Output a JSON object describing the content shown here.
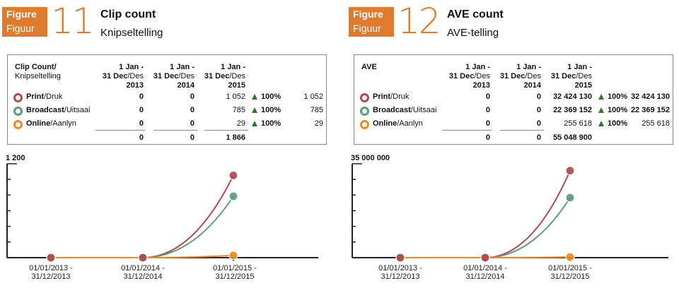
{
  "figures": [
    {
      "badge_line1": "Figure",
      "badge_line2": "Figuur",
      "number": "11",
      "title": "Clip count",
      "subtitle": "Knipseltelling",
      "table": {
        "header_main_bold": "Clip Count/",
        "header_main_sub": "Knipseltelling",
        "columns": [
          {
            "line1": "1 Jan -",
            "line2_bold": "31 Dec",
            "line2_rest": "/Des",
            "line3": "2013"
          },
          {
            "line1": "1 Jan -",
            "line2_bold": "31 Dec",
            "line2_rest": "/Des",
            "line3": "2014"
          },
          {
            "line1": "1 Jan -",
            "line2_bold": "31 Dec",
            "line2_rest": "/Des",
            "line3": "2015"
          }
        ],
        "rows": [
          {
            "label_bold": "Print",
            "label_rest": "/Druk",
            "color": "#b04a4f",
            "values": [
              "0",
              "0",
              "1 052"
            ],
            "pct": "100%",
            "total": "1 052"
          },
          {
            "label_bold": "Broadcast",
            "label_rest": "/Uitsaai",
            "color": "#5c9c79",
            "values": [
              "0",
              "0",
              "785"
            ],
            "pct": "100%",
            "total": "785"
          },
          {
            "label_bold": "Online",
            "label_rest": "/Aanlyn",
            "color": "#ee8a1e",
            "values": [
              "0",
              "0",
              "29"
            ],
            "pct": "100%",
            "total": "29"
          }
        ],
        "totals": [
          "0",
          "0",
          "1 866"
        ]
      },
      "chart_data": {
        "type": "line",
        "categories": [
          "01/01/2013 - 31/12/2013",
          "01/01/2014 - 31/12/2014",
          "01/01/2015 - 31/12/2015"
        ],
        "y_max_label": "1 200",
        "ylim": [
          0,
          1200
        ],
        "series": [
          {
            "name": "Print",
            "color": "#b04a4f",
            "values": [
              0,
              0,
              1052
            ]
          },
          {
            "name": "Broadcast",
            "color": "#5c9c79",
            "values": [
              0,
              0,
              785
            ]
          },
          {
            "name": "Online",
            "color": "#ee8a1e",
            "values": [
              0,
              0,
              29
            ]
          }
        ]
      }
    },
    {
      "badge_line1": "Figure",
      "badge_line2": "Figuur",
      "number": "12",
      "title": "AVE count",
      "subtitle": "AVE-telling",
      "table": {
        "header_main_bold": "AVE",
        "header_main_sub": "",
        "columns": [
          {
            "line1": "1 Jan -",
            "line2_bold": "31 Dec",
            "line2_rest": "/Des",
            "line3": "2013"
          },
          {
            "line1": "1 Jan -",
            "line2_bold": "31 Dec",
            "line2_rest": "/Des",
            "line3": "2014"
          },
          {
            "line1": "1 Jan -",
            "line2_bold": "31 Dec",
            "line2_rest": "/Des",
            "line3": "2015"
          }
        ],
        "rows": [
          {
            "label_bold": "Print",
            "label_rest": "/Druk",
            "color": "#b04a4f",
            "values": [
              "0",
              "0",
              "32 424 130"
            ],
            "pct": "100%",
            "total": "32 424 130"
          },
          {
            "label_bold": "Broadcast",
            "label_rest": "/Uitsaai",
            "color": "#5c9c79",
            "values": [
              "0",
              "0",
              "22 369 152"
            ],
            "pct": "100%",
            "total": "22 369 152"
          },
          {
            "label_bold": "Online",
            "label_rest": "/Aanlyn",
            "color": "#ee8a1e",
            "values": [
              "0",
              "0",
              "255 618"
            ],
            "pct": "100%",
            "total": "255 618"
          }
        ],
        "totals": [
          "0",
          "0",
          "55 048 900"
        ]
      },
      "chart_data": {
        "type": "line",
        "categories": [
          "01/01/2013 - 31/12/2013",
          "01/01/2014 - 31/12/2014",
          "01/01/2015 - 31/12/2015"
        ],
        "y_max_label": "35 000 000",
        "ylim": [
          0,
          35000000
        ],
        "series": [
          {
            "name": "Print",
            "color": "#b04a4f",
            "values": [
              0,
              0,
              32424130
            ]
          },
          {
            "name": "Broadcast",
            "color": "#5c9c79",
            "values": [
              0,
              0,
              22369152
            ]
          },
          {
            "name": "Online",
            "color": "#ee8a1e",
            "values": [
              0,
              0,
              255618
            ]
          }
        ]
      }
    }
  ]
}
